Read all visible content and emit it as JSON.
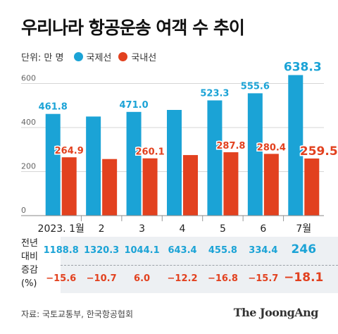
{
  "title": "우리나라 항공운송 여객 수 추이",
  "legend": {
    "unit": "단위: 만 명",
    "international": "국제선",
    "domestic": "국내선"
  },
  "colors": {
    "international": "#1ba3d6",
    "domestic": "#e2411f",
    "table_band": "#edf0f3"
  },
  "chart_data": {
    "type": "bar",
    "categories": [
      "2023. 1월",
      "2",
      "3",
      "4",
      "5",
      "6",
      "7월"
    ],
    "series": [
      {
        "name": "국제선",
        "values": [
          461.8,
          450.0,
          471.0,
          480.0,
          523.3,
          555.6,
          638.3
        ],
        "labels": [
          "461.8",
          "",
          "471.0",
          "",
          "523.3",
          "555.6",
          "638.3"
        ]
      },
      {
        "name": "국내선",
        "values": [
          264.9,
          257.0,
          260.1,
          275.0,
          287.8,
          280.4,
          259.5
        ],
        "labels": [
          "264.9",
          "",
          "260.1",
          "",
          "287.8",
          "280.4",
          "259.5"
        ]
      }
    ],
    "yticks": [
      "0",
      "200",
      "400",
      "600"
    ],
    "ylim": [
      0,
      680
    ],
    "grid": true
  },
  "yoy_table": {
    "header_line1": "전년",
    "header_line2": "대비",
    "header_line3": "증감",
    "header_line4": "(%)",
    "international": [
      "1188.8",
      "1320.3",
      "1044.1",
      "643.4",
      "455.8",
      "334.4",
      "246"
    ],
    "domestic": [
      "−15.6",
      "−10.7",
      "6.0",
      "−12.2",
      "−16.8",
      "−15.7",
      "−18.1"
    ]
  },
  "footer": {
    "source": "자료: 국토교통부, 한국항공협회",
    "brand": "The JoongAng"
  }
}
